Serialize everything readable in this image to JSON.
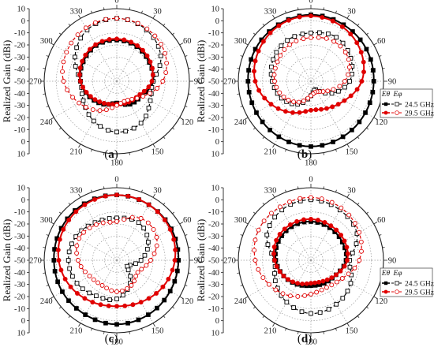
{
  "chart_data": [
    {
      "type": "polar-line",
      "panel_label": "a",
      "caption": [
        "(",
        "a",
        ")"
      ],
      "ylabel": "Realized Gain (dBi)",
      "r_range": [
        -50,
        10
      ],
      "r_tick_labels": [
        "10",
        "0",
        "-10",
        "-20",
        "-30",
        "-40",
        "-50",
        "-40",
        "-30",
        "-20",
        "-10",
        "0",
        "10"
      ],
      "angle_ticks": [
        "0",
        "30",
        "60",
        "90",
        "120",
        "150",
        "180",
        "210",
        "240",
        "270",
        "300",
        "330"
      ],
      "legend": null,
      "series": [
        {
          "freq": "24.5 GHz",
          "comp": "Eθ",
          "color": "#000000",
          "line": "solid",
          "marker": "square-filled",
          "angles": [
            0,
            30,
            60,
            90,
            120,
            150,
            180,
            210,
            240,
            270,
            300,
            330
          ],
          "values": [
            -16,
            -17,
            -19,
            -20,
            -26,
            -28,
            -32,
            -28,
            -24,
            -20,
            -18,
            -16
          ]
        },
        {
          "freq": "24.5 GHz",
          "comp": "Eφ",
          "color": "#000000",
          "line": "dashed",
          "marker": "square-open",
          "angles": [
            0,
            30,
            60,
            90,
            120,
            150,
            180,
            210,
            240,
            270,
            300,
            330
          ],
          "values": [
            2,
            -1,
            -8,
            -20,
            -18,
            -10,
            -8,
            -12,
            -18,
            -20,
            -10,
            -1
          ]
        },
        {
          "freq": "29.5 GHz",
          "comp": "Eθ",
          "color": "#e00000",
          "line": "solid",
          "marker": "circle-filled",
          "angles": [
            0,
            30,
            60,
            90,
            120,
            150,
            180,
            210,
            240,
            270,
            300,
            330
          ],
          "values": [
            -15,
            -16,
            -18,
            -21,
            -28,
            -30,
            -31,
            -29,
            -25,
            -20,
            -17,
            -15
          ]
        },
        {
          "freq": "29.5 GHz",
          "comp": "Eφ",
          "color": "#e00000",
          "line": "dashed",
          "marker": "circle-open",
          "angles": [
            0,
            30,
            60,
            90,
            120,
            150,
            180,
            210,
            240,
            270,
            300,
            330
          ],
          "values": [
            2,
            0,
            -4,
            -12,
            -25,
            -32,
            -30,
            -22,
            -14,
            -6,
            -2,
            1
          ]
        }
      ]
    },
    {
      "type": "polar-line",
      "panel_label": "b",
      "caption": [
        "(",
        "b",
        ")"
      ],
      "ylabel": "Realized Gain (dBi)",
      "r_range": [
        -50,
        10
      ],
      "r_tick_labels": [
        "10",
        "0",
        "-10",
        "-20",
        "-30",
        "-40",
        "-50",
        "-40",
        "-30",
        "-20",
        "-10",
        "0",
        "10"
      ],
      "angle_ticks": [
        "0",
        "30",
        "60",
        "90",
        "120",
        "150",
        "180",
        "210",
        "240",
        "270",
        "300",
        "330"
      ],
      "legend": {
        "header_theta": "Eθ",
        "header_phi": "Eφ",
        "entries": [
          "24.5 GHz",
          "29.5 GHz"
        ],
        "position": "right"
      },
      "series": [
        {
          "freq": "24.5 GHz",
          "comp": "Eθ",
          "color": "#000000",
          "line": "solid",
          "marker": "square-filled",
          "angles": [
            0,
            30,
            60,
            90,
            120,
            150,
            180,
            210,
            240,
            270,
            300,
            330
          ],
          "values": [
            5,
            4,
            3,
            2,
            2,
            3,
            4,
            3,
            2,
            2,
            3,
            4
          ]
        },
        {
          "freq": "24.5 GHz",
          "comp": "Eφ",
          "color": "#000000",
          "line": "dashed",
          "marker": "square-open",
          "angles": [
            0,
            30,
            60,
            90,
            120,
            150,
            180,
            210,
            240,
            270,
            300,
            330
          ],
          "values": [
            -10,
            -8,
            -12,
            -18,
            -30,
            -42,
            -38,
            -28,
            -22,
            -18,
            -14,
            -11
          ]
        },
        {
          "freq": "29.5 GHz",
          "comp": "Eθ",
          "color": "#e00000",
          "line": "solid",
          "marker": "circle-filled",
          "angles": [
            0,
            30,
            60,
            90,
            120,
            150,
            180,
            210,
            240,
            270,
            300,
            330
          ],
          "values": [
            4,
            2,
            -2,
            -8,
            -18,
            -24,
            -26,
            -20,
            -12,
            -4,
            0,
            3
          ]
        },
        {
          "freq": "29.5 GHz",
          "comp": "Eφ",
          "color": "#e00000",
          "line": "dashed",
          "marker": "circle-open",
          "angles": [
            0,
            30,
            60,
            90,
            120,
            150,
            180,
            210,
            240,
            270,
            300,
            330
          ],
          "values": [
            -14,
            -12,
            -14,
            -22,
            -34,
            -40,
            -38,
            -30,
            -24,
            -20,
            -18,
            -15
          ]
        }
      ]
    },
    {
      "type": "polar-line",
      "panel_label": "c",
      "caption": [
        "(",
        "c",
        ")"
      ],
      "ylabel": "Realized Gain (dBi)",
      "r_range": [
        -50,
        10
      ],
      "r_tick_labels": [
        "10",
        "0",
        "-10",
        "-20",
        "-30",
        "-40",
        "-50",
        "-40",
        "-30",
        "-20",
        "-10",
        "0",
        "10"
      ],
      "angle_ticks": [
        "0",
        "30",
        "60",
        "90",
        "120",
        "150",
        "180",
        "210",
        "240",
        "270",
        "300",
        "330"
      ],
      "legend": null,
      "series": [
        {
          "freq": "24.5 GHz",
          "comp": "Eθ",
          "color": "#000000",
          "line": "solid",
          "marker": "square-filled",
          "angles": [
            0,
            30,
            60,
            90,
            120,
            150,
            180,
            210,
            240,
            270,
            300,
            330
          ],
          "values": [
            4,
            3,
            2,
            1,
            1,
            2,
            3,
            2,
            2,
            2,
            3,
            4
          ]
        },
        {
          "freq": "24.5 GHz",
          "comp": "Eφ",
          "color": "#000000",
          "line": "dashed",
          "marker": "square-open",
          "angles": [
            0,
            30,
            60,
            90,
            120,
            150,
            180,
            210,
            240,
            270,
            300,
            330
          ],
          "values": [
            -15,
            -14,
            -20,
            -30,
            -40,
            -28,
            -18,
            -16,
            -12,
            -10,
            -11,
            -14
          ]
        },
        {
          "freq": "29.5 GHz",
          "comp": "Eθ",
          "color": "#e00000",
          "line": "solid",
          "marker": "circle-filled",
          "angles": [
            0,
            30,
            60,
            90,
            120,
            150,
            180,
            210,
            240,
            270,
            300,
            330
          ],
          "values": [
            4,
            3,
            1,
            -2,
            -6,
            -10,
            -12,
            -10,
            -6,
            -2,
            1,
            3
          ]
        },
        {
          "freq": "29.5 GHz",
          "comp": "Eφ",
          "color": "#e00000",
          "line": "dashed",
          "marker": "circle-open",
          "angles": [
            0,
            30,
            60,
            90,
            120,
            150,
            180,
            210,
            240,
            270,
            300,
            330
          ],
          "values": [
            -18,
            -10,
            -12,
            -22,
            -30,
            -26,
            -24,
            -26,
            -24,
            -18,
            -14,
            -16
          ]
        }
      ]
    },
    {
      "type": "polar-line",
      "panel_label": "d",
      "caption": [
        "(",
        "d",
        ")"
      ],
      "ylabel": "Realized Gain (dBi)",
      "r_range": [
        -50,
        10
      ],
      "r_tick_labels": [
        "10",
        "0",
        "-10",
        "-20",
        "-30",
        "-40",
        "-50",
        "-40",
        "-30",
        "-20",
        "-10",
        "0",
        "10"
      ],
      "angle_ticks": [
        "0",
        "30",
        "60",
        "90",
        "120",
        "150",
        "180",
        "210",
        "240",
        "270",
        "300",
        "330"
      ],
      "legend": {
        "header_theta": "Eθ",
        "header_phi": "Eφ",
        "entries": [
          "24.5 GHz",
          "29.5 GHz"
        ],
        "position": "right"
      },
      "series": [
        {
          "freq": "24.5 GHz",
          "comp": "Eθ",
          "color": "#000000",
          "line": "solid",
          "marker": "square-filled",
          "angles": [
            0,
            30,
            60,
            90,
            120,
            150,
            180,
            210,
            240,
            270,
            300,
            330
          ],
          "values": [
            -18,
            -19,
            -20,
            -21,
            -26,
            -28,
            -29,
            -27,
            -24,
            -21,
            -19,
            -18
          ]
        },
        {
          "freq": "24.5 GHz",
          "comp": "Eφ",
          "color": "#000000",
          "line": "dashed",
          "marker": "square-open",
          "angles": [
            0,
            30,
            60,
            90,
            120,
            150,
            180,
            210,
            240,
            270,
            300,
            330
          ],
          "values": [
            0,
            -2,
            -6,
            -18,
            -12,
            -8,
            -6,
            -10,
            -16,
            -20,
            -8,
            -2
          ]
        },
        {
          "freq": "29.5 GHz",
          "comp": "Eθ",
          "color": "#e00000",
          "line": "solid",
          "marker": "circle-filled",
          "angles": [
            0,
            30,
            60,
            90,
            120,
            150,
            180,
            210,
            240,
            270,
            300,
            330
          ],
          "values": [
            -16,
            -17,
            -18,
            -20,
            -26,
            -30,
            -31,
            -28,
            -24,
            -20,
            -17,
            -16
          ]
        },
        {
          "freq": "29.5 GHz",
          "comp": "Eφ",
          "color": "#e00000",
          "line": "dashed",
          "marker": "circle-open",
          "angles": [
            0,
            30,
            60,
            90,
            120,
            150,
            180,
            210,
            240,
            270,
            300,
            330
          ],
          "values": [
            2,
            0,
            -4,
            -10,
            -20,
            -24,
            -22,
            -16,
            -10,
            -4,
            0,
            1
          ]
        }
      ]
    }
  ]
}
